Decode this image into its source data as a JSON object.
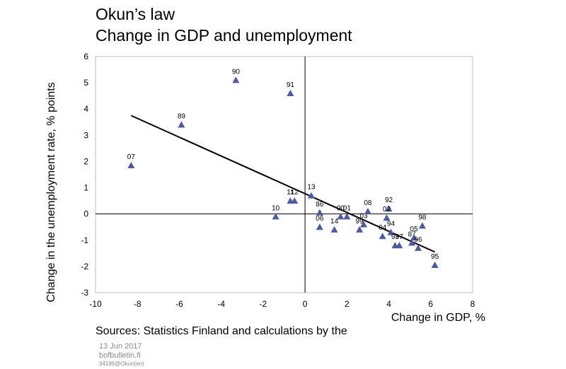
{
  "header": {
    "title": "Okun’s law",
    "subtitle": "Change in GDP and unemployment"
  },
  "footer": {
    "sources": "Sources: Statistics Finland and calculations by the",
    "date": "13 Jun 2017",
    "site": "bofbulletin.fi",
    "code": "34196@Okun(en)"
  },
  "colors": {
    "marker": "#4a5aa6",
    "trendline": "#000000",
    "axis": "#000000",
    "border": "#bfbfbf"
  },
  "chart_data": {
    "type": "scatter",
    "title": "Okun’s law",
    "subtitle": "Change in GDP and unemployment",
    "xlabel": "Change in GDP, %",
    "ylabel": "Change in the unemployment rate, % points",
    "xlim": [
      -10,
      8
    ],
    "ylim": [
      -3,
      6
    ],
    "xticks": [
      -10,
      -8,
      -6,
      -4,
      -2,
      0,
      2,
      4,
      6,
      8
    ],
    "yticks": [
      -3,
      -2,
      -1,
      0,
      1,
      2,
      3,
      4,
      5,
      6
    ],
    "grid": false,
    "marker": "triangle",
    "points": [
      {
        "label": "90",
        "x": -3.3,
        "y": 5.1
      },
      {
        "label": "91",
        "x": -0.7,
        "y": 4.6
      },
      {
        "label": "89",
        "x": -5.9,
        "y": 3.4
      },
      {
        "label": "07",
        "x": -8.3,
        "y": 1.85
      },
      {
        "label": "13",
        "x": 0.3,
        "y": 0.7
      },
      {
        "label": "11",
        "x": -0.7,
        "y": 0.5
      },
      {
        "label": "12",
        "x": -0.5,
        "y": 0.5
      },
      {
        "label": "10",
        "x": -1.4,
        "y": -0.1
      },
      {
        "label": "86",
        "x": 0.7,
        "y": 0.05
      },
      {
        "label": "06",
        "x": 0.7,
        "y": -0.5
      },
      {
        "label": "14",
        "x": 1.4,
        "y": -0.6
      },
      {
        "label": "00",
        "x": 1.7,
        "y": -0.1
      },
      {
        "label": "01",
        "x": 2.0,
        "y": -0.1
      },
      {
        "label": "99",
        "x": 2.6,
        "y": -0.6
      },
      {
        "label": "03",
        "x": 2.8,
        "y": -0.4
      },
      {
        "label": "08",
        "x": 3.0,
        "y": 0.1
      },
      {
        "label": "04",
        "x": 3.7,
        "y": -0.85
      },
      {
        "label": "92",
        "x": 4.0,
        "y": 0.2
      },
      {
        "label": "02",
        "x": 3.9,
        "y": -0.15
      },
      {
        "label": "94",
        "x": 4.1,
        "y": -0.7
      },
      {
        "label": "93",
        "x": 4.3,
        "y": -1.2
      },
      {
        "label": "97",
        "x": 4.5,
        "y": -1.2
      },
      {
        "label": "87",
        "x": 5.1,
        "y": -1.1
      },
      {
        "label": "05",
        "x": 5.2,
        "y": -0.9
      },
      {
        "label": "96",
        "x": 5.4,
        "y": -1.3
      },
      {
        "label": "98",
        "x": 5.6,
        "y": -0.45
      },
      {
        "label": "95",
        "x": 6.2,
        "y": -1.95
      }
    ],
    "trendline": {
      "x": [
        -8.3,
        6.2
      ],
      "y": [
        3.75,
        -1.45
      ]
    }
  }
}
